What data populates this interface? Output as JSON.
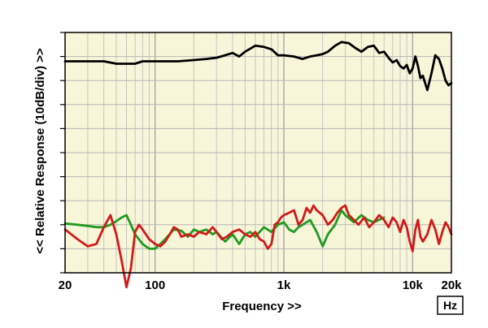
{
  "chart_data": {
    "type": "line",
    "title": "",
    "xlabel": "Frequency >>",
    "ylabel": "<< Relative Response (10dB/div) >>",
    "x_unit_box": "Hz",
    "x_scale": "log",
    "xlim": [
      20,
      20000
    ],
    "ylim_divisions": 10,
    "y_division_db": 10,
    "grid": true,
    "plot_background": "#f8f6d8",
    "x_tick_labels": [
      {
        "value": 20,
        "label": "20"
      },
      {
        "value": 100,
        "label": "100"
      },
      {
        "value": 1000,
        "label": "1k"
      },
      {
        "value": 10000,
        "label": "10k"
      },
      {
        "value": 20000,
        "label": "20k"
      }
    ],
    "series": [
      {
        "color": "#000000",
        "x": [
          20,
          30,
          40,
          50,
          60,
          70,
          80,
          100,
          150,
          200,
          250,
          300,
          350,
          400,
          450,
          500,
          600,
          700,
          800,
          900,
          1000,
          1200,
          1400,
          1600,
          1800,
          2000,
          2200,
          2500,
          2800,
          3200,
          3600,
          4000,
          4500,
          5000,
          5500,
          6000,
          6500,
          7000,
          7500,
          8000,
          8500,
          9000,
          9500,
          10000,
          10500,
          11000,
          11500,
          12000,
          13000,
          14000,
          15000,
          16000,
          17000,
          18000,
          19000,
          20000
        ],
        "y": [
          8.8,
          8.8,
          8.8,
          8.7,
          8.7,
          8.7,
          8.8,
          8.8,
          8.8,
          8.85,
          8.9,
          8.95,
          9.05,
          9.15,
          9.0,
          9.2,
          9.45,
          9.4,
          9.3,
          9.05,
          9.05,
          9.0,
          8.9,
          9.0,
          9.05,
          9.1,
          9.2,
          9.45,
          9.6,
          9.55,
          9.35,
          9.2,
          9.4,
          9.45,
          9.15,
          9.2,
          8.95,
          8.75,
          8.85,
          8.6,
          8.5,
          8.65,
          8.3,
          8.5,
          9.0,
          8.6,
          8.1,
          8.2,
          7.6,
          8.3,
          9.05,
          8.9,
          8.5,
          8.0,
          7.8,
          7.9
        ]
      },
      {
        "color": "#1f9a1f",
        "x": [
          20,
          25,
          30,
          35,
          40,
          45,
          50,
          55,
          60,
          65,
          70,
          80,
          90,
          100,
          110,
          120,
          140,
          160,
          180,
          200,
          220,
          250,
          280,
          300,
          350,
          400,
          450,
          500,
          550,
          600,
          700,
          800,
          900,
          1000,
          1100,
          1200,
          1300,
          1400,
          1600,
          1800,
          2000,
          2200,
          2500,
          2800,
          3000,
          3500,
          4000,
          4500,
          5000,
          6000
        ],
        "y": [
          2.05,
          2.0,
          1.95,
          1.9,
          1.9,
          2.0,
          2.15,
          2.3,
          2.4,
          2.0,
          1.6,
          1.2,
          1.0,
          1.0,
          1.2,
          1.4,
          1.8,
          1.75,
          1.5,
          1.8,
          1.7,
          1.8,
          1.6,
          1.7,
          1.3,
          1.6,
          1.2,
          1.6,
          1.7,
          1.5,
          1.9,
          1.7,
          2.0,
          2.1,
          1.8,
          1.7,
          1.9,
          2.0,
          2.2,
          1.7,
          1.1,
          1.6,
          2.0,
          2.6,
          2.4,
          2.1,
          2.4,
          2.2,
          2.1,
          2.3
        ]
      },
      {
        "color": "#d21a1a",
        "x": [
          20,
          25,
          30,
          35,
          40,
          45,
          50,
          55,
          60,
          65,
          70,
          75,
          80,
          90,
          100,
          110,
          120,
          130,
          140,
          150,
          160,
          180,
          200,
          220,
          250,
          280,
          300,
          330,
          360,
          400,
          450,
          500,
          550,
          600,
          650,
          700,
          750,
          800,
          850,
          900,
          950,
          1000,
          1100,
          1200,
          1300,
          1400,
          1500,
          1600,
          1700,
          1800,
          2000,
          2200,
          2400,
          2600,
          2800,
          3000,
          3200,
          3500,
          3800,
          4200,
          4600,
          5000,
          5500,
          6000,
          6500,
          7000,
          7500,
          8000,
          8500,
          9000,
          9500,
          10000,
          10500,
          11000,
          11500,
          12000,
          13000,
          14000,
          15000,
          16000,
          17000,
          18000,
          19000,
          20000
        ],
        "y": [
          1.8,
          1.4,
          1.1,
          1.2,
          1.9,
          2.4,
          1.6,
          0.5,
          -0.6,
          0.2,
          1.7,
          2.0,
          1.8,
          1.4,
          1.2,
          1.1,
          1.3,
          1.6,
          1.9,
          1.8,
          1.5,
          1.6,
          1.5,
          1.7,
          1.6,
          1.9,
          1.7,
          1.4,
          1.5,
          1.7,
          1.8,
          1.6,
          1.5,
          1.7,
          1.4,
          1.3,
          1.0,
          1.2,
          2.0,
          2.1,
          2.3,
          2.4,
          2.5,
          2.6,
          2.0,
          2.2,
          2.7,
          2.5,
          2.8,
          2.6,
          2.4,
          2.0,
          2.2,
          2.5,
          2.7,
          2.8,
          2.4,
          2.2,
          2.0,
          2.3,
          1.9,
          2.1,
          2.4,
          2.2,
          1.9,
          2.3,
          2.1,
          1.7,
          2.2,
          1.9,
          1.3,
          0.9,
          1.8,
          2.2,
          1.5,
          1.3,
          1.6,
          2.2,
          1.8,
          1.2,
          1.7,
          2.1,
          1.9,
          1.6
        ]
      }
    ]
  }
}
